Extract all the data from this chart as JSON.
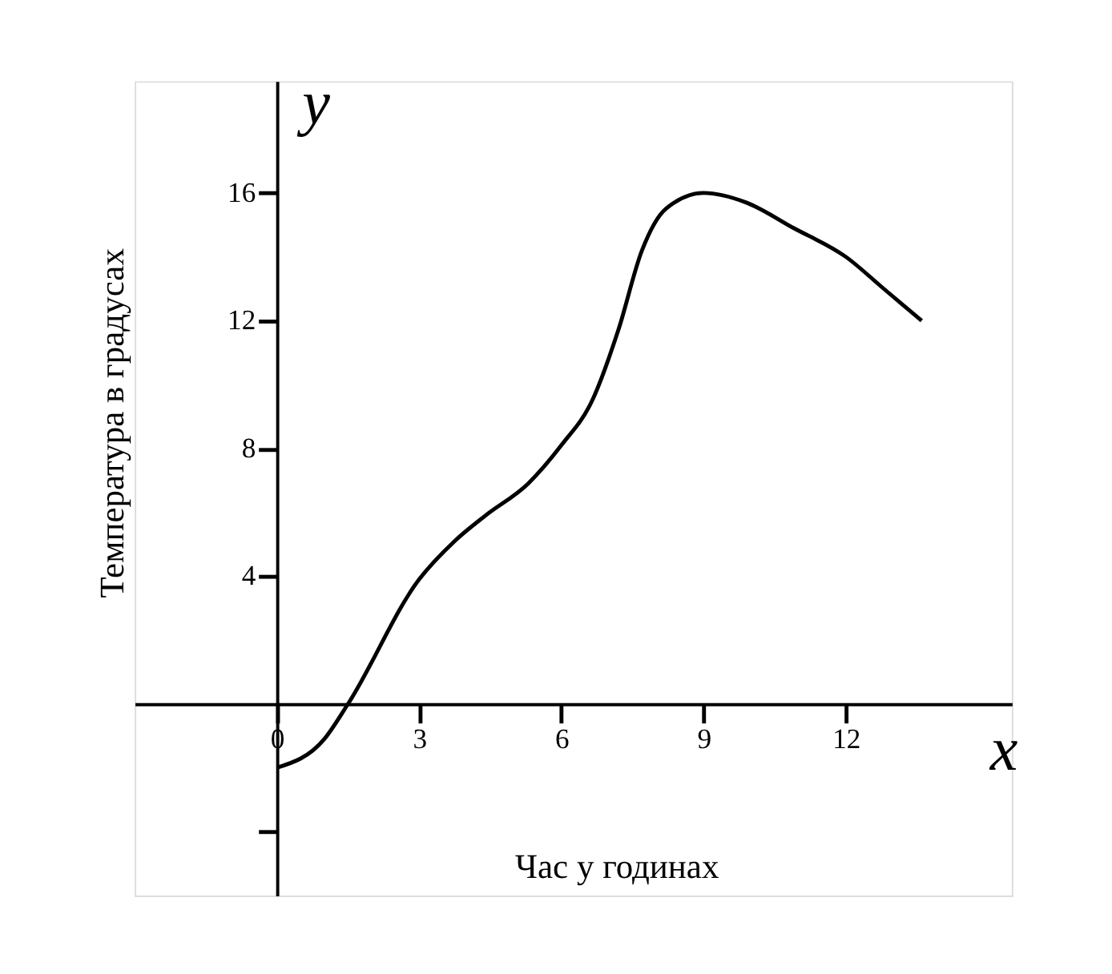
{
  "chart_data": {
    "type": "line",
    "xlabel": "Час у годинах",
    "ylabel": "Температура в градусах",
    "x": [
      0,
      1.0,
      1.5,
      3,
      3.75,
      4.4,
      5.3,
      6,
      6.65,
      7.2,
      7.7,
      8.2,
      9,
      9.9,
      10.9,
      12,
      12.8,
      13.6
    ],
    "series": [
      {
        "color": "#000000",
        "values": [
          -2.0,
          -1.1,
          0,
          3.9,
          5.1,
          5.9,
          6.9,
          8.1,
          9.5,
          11.7,
          14.2,
          15.5,
          16,
          15.7,
          14.9,
          14,
          13,
          12.0
        ]
      }
    ],
    "xlim": [
      -3,
      15.5
    ],
    "ylim": [
      -6,
      19.5
    ],
    "xticks": [
      0,
      3,
      6,
      9,
      12
    ],
    "yticks": [
      {
        "value": -4,
        "label": null
      },
      4,
      8,
      12,
      16
    ],
    "annotations": [
      "x",
      "y"
    ],
    "grid": false,
    "marker": "none",
    "line_style": "solid"
  }
}
